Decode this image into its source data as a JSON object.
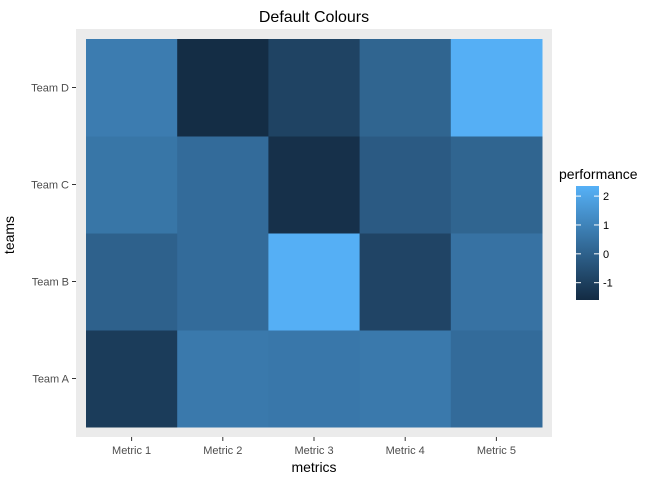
{
  "chart_data": {
    "type": "heatmap",
    "title": "Default Colours",
    "xlabel": "metrics",
    "ylabel": "teams",
    "x_categories": [
      "Metric 1",
      "Metric 2",
      "Metric 3",
      "Metric 4",
      "Metric 5"
    ],
    "y_categories": [
      "Team A",
      "Team B",
      "Team C",
      "Team D"
    ],
    "values": [
      [
        -1.1,
        0.7,
        0.65,
        0.7,
        0.3
      ],
      [
        0.0,
        0.3,
        2.3,
        -0.85,
        0.5
      ],
      [
        0.6,
        0.3,
        -1.45,
        -0.2,
        0.1
      ],
      [
        0.8,
        -1.55,
        -0.9,
        0.1,
        2.3
      ]
    ],
    "legend": {
      "title": "performance",
      "ticks": [
        2,
        1,
        0,
        -1
      ],
      "tick_labels": [
        "2",
        "1",
        "0",
        "-1"
      ],
      "range": [
        -1.6,
        2.35
      ],
      "low_color": "#132B43",
      "high_color": "#56B1F7",
      "placement": "right"
    },
    "panel_background": "#EBEBEB",
    "grid": true
  }
}
